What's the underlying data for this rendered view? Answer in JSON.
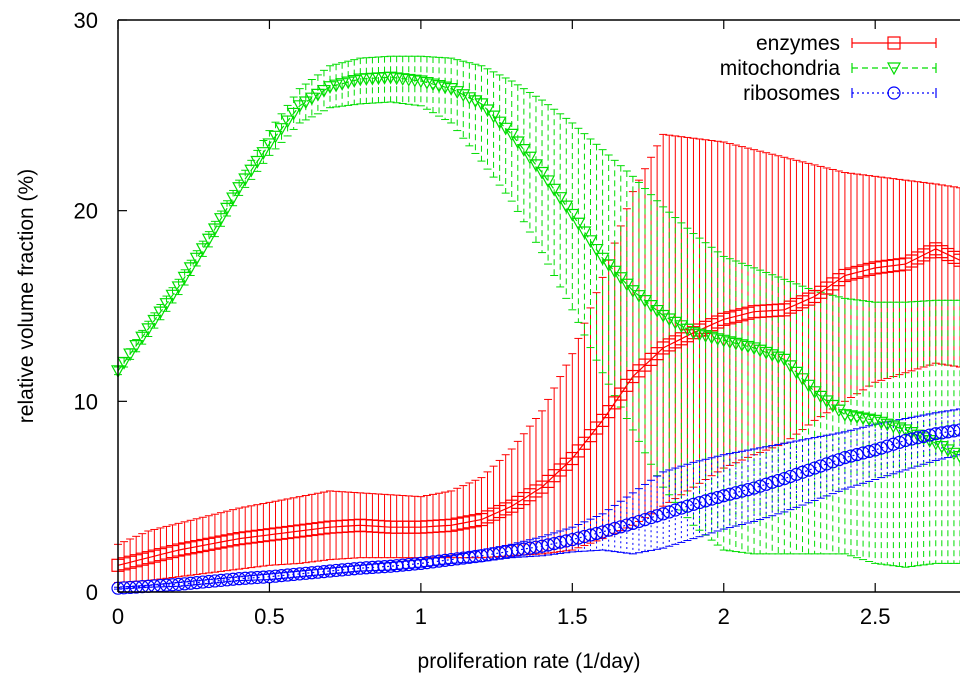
{
  "chart_data": {
    "type": "line",
    "title": "",
    "xlabel": "proliferation rate (1/day)",
    "ylabel": "relative volume fraction (%)",
    "xlim": [
      0,
      2.78
    ],
    "ylim": [
      0,
      30
    ],
    "x_ticks": [
      0,
      0.5,
      1,
      1.5,
      2,
      2.5
    ],
    "x_tick_labels": [
      "0",
      "0.5",
      "1",
      "1.5",
      "2",
      "2.5"
    ],
    "y_ticks": [
      0,
      10,
      20,
      30
    ],
    "y_tick_labels": [
      "0",
      "10",
      "20",
      "30"
    ],
    "grid": false,
    "legend_position": "top-right",
    "x": [
      0.0,
      0.1,
      0.2,
      0.3,
      0.4,
      0.5,
      0.6,
      0.7,
      0.8,
      0.9,
      1.0,
      1.1,
      1.2,
      1.3,
      1.4,
      1.5,
      1.6,
      1.7,
      1.8,
      1.9,
      2.0,
      2.1,
      2.2,
      2.3,
      2.4,
      2.5,
      2.6,
      2.7,
      2.78
    ],
    "series": [
      {
        "name": "enzymes",
        "color": "#ff0000",
        "marker": "square",
        "values": [
          1.4,
          1.8,
          2.2,
          2.5,
          2.8,
          3.0,
          3.2,
          3.4,
          3.5,
          3.4,
          3.4,
          3.5,
          3.8,
          4.5,
          5.5,
          7.0,
          9.0,
          11.3,
          12.8,
          13.6,
          14.3,
          14.7,
          14.8,
          15.5,
          16.6,
          17.0,
          17.2,
          18.0,
          17.4
        ],
        "upper": [
          2.5,
          3.2,
          3.6,
          4.0,
          4.4,
          4.7,
          5.0,
          5.3,
          5.2,
          5.1,
          5.0,
          5.3,
          6.0,
          7.5,
          9.5,
          12.5,
          16.5,
          21.0,
          24.0,
          23.8,
          23.6,
          23.2,
          22.8,
          22.4,
          22.0,
          21.8,
          21.6,
          21.4,
          21.2
        ],
        "lower": [
          0.5,
          0.6,
          0.8,
          1.0,
          1.2,
          1.4,
          1.5,
          1.7,
          1.8,
          1.8,
          1.8,
          1.8,
          1.8,
          1.9,
          2.0,
          2.2,
          2.8,
          3.5,
          4.5,
          5.5,
          6.5,
          7.2,
          7.8,
          9.0,
          10.0,
          11.0,
          11.5,
          12.0,
          11.8
        ]
      },
      {
        "name": "mitochondria",
        "color": "#00dd00",
        "marker": "triangle-down",
        "values": [
          11.6,
          13.8,
          16.0,
          18.5,
          21.2,
          23.5,
          25.5,
          26.5,
          26.9,
          27.0,
          26.8,
          26.4,
          25.6,
          24.0,
          22.0,
          19.8,
          17.5,
          15.8,
          14.5,
          13.6,
          13.2,
          12.8,
          12.2,
          10.5,
          9.3,
          9.0,
          8.5,
          7.8,
          7.1
        ],
        "upper": [
          11.8,
          14.2,
          16.4,
          18.9,
          21.6,
          24.2,
          26.4,
          27.6,
          28.0,
          28.1,
          28.1,
          28.0,
          27.6,
          26.8,
          25.8,
          24.6,
          23.2,
          21.8,
          20.2,
          18.8,
          17.6,
          17.0,
          16.4,
          15.8,
          15.4,
          15.2,
          15.2,
          15.3,
          15.3
        ],
        "lower": [
          11.4,
          13.4,
          15.6,
          18.1,
          20.8,
          22.9,
          24.6,
          25.4,
          25.6,
          25.7,
          25.5,
          24.6,
          22.6,
          20.5,
          17.8,
          14.8,
          11.5,
          8.5,
          5.5,
          3.5,
          2.2,
          2.0,
          2.0,
          2.0,
          2.0,
          1.5,
          1.3,
          1.5,
          1.5
        ]
      },
      {
        "name": "ribosomes",
        "color": "#0000ff",
        "marker": "circle",
        "values": [
          0.2,
          0.3,
          0.4,
          0.55,
          0.7,
          0.8,
          0.95,
          1.1,
          1.25,
          1.35,
          1.5,
          1.7,
          1.9,
          2.15,
          2.4,
          2.75,
          3.15,
          3.6,
          4.1,
          4.6,
          5.05,
          5.45,
          5.95,
          6.5,
          7.05,
          7.45,
          7.95,
          8.3,
          8.5
        ],
        "upper": [
          0.25,
          0.35,
          0.5,
          0.65,
          0.8,
          0.95,
          1.1,
          1.25,
          1.4,
          1.55,
          1.7,
          1.9,
          2.2,
          2.5,
          2.9,
          3.4,
          4.1,
          5.2,
          6.3,
          6.8,
          7.2,
          7.5,
          7.8,
          8.1,
          8.4,
          8.8,
          9.1,
          9.4,
          9.6
        ],
        "lower": [
          0.15,
          0.25,
          0.3,
          0.45,
          0.6,
          0.65,
          0.8,
          0.95,
          1.1,
          1.15,
          1.3,
          1.5,
          1.6,
          1.8,
          1.9,
          2.1,
          2.2,
          2.0,
          2.3,
          2.8,
          3.3,
          3.7,
          4.2,
          4.8,
          5.4,
          5.9,
          6.4,
          6.9,
          7.2
        ]
      }
    ]
  }
}
